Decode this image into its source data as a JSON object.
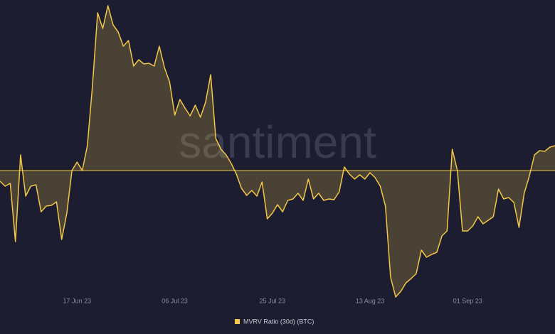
{
  "chart_data": {
    "type": "area-line",
    "watermark": "santiment",
    "series": [
      {
        "name": "MVRV Ratio (30d) (BTC)",
        "color": "#f3c747",
        "values": [
          -0.75,
          -1.1,
          -0.9,
          -5,
          1.1,
          -1.8,
          -1.1,
          -1,
          -2.9,
          -2.5,
          -2.45,
          -2.2,
          -4.85,
          -3,
          0,
          0.6,
          0,
          1.75,
          6,
          11.1,
          10,
          11.6,
          10.25,
          9.75,
          8.75,
          9.15,
          7.35,
          7.8,
          7.5,
          7.55,
          7.35,
          8.75,
          7.25,
          6.25,
          3.9,
          5,
          4.4,
          3.85,
          4.6,
          3.75,
          4.8,
          6.75,
          2.25,
          1.5,
          1.1,
          0.5,
          -0.25,
          -1.25,
          -1.75,
          -1.4,
          -1.8,
          -0.8,
          -3.4,
          -3,
          -2.4,
          -2.9,
          -2.1,
          -2,
          -1.6,
          -2.1,
          -0.6,
          -2,
          -1.6,
          -2.1,
          -2,
          -2.05,
          -1.5,
          0.25,
          -0.25,
          -0.6,
          -0.3,
          -0.6,
          -0.15,
          -0.5,
          -1.1,
          -2.5,
          -7.5,
          -8.9,
          -8.5,
          -7.9,
          -7.6,
          -7.25,
          -5.6,
          -6.1,
          -5.9,
          -5.75,
          -4.6,
          -4.25,
          1.5,
          0,
          -4.25,
          -4.25,
          -3.9,
          -3.25,
          -3.75,
          -3.5,
          -3.25,
          -1.3,
          -2,
          -1.9,
          -2.25,
          -4,
          -1.6,
          -0.4,
          1.1,
          1.4,
          1.35,
          1.65,
          1.75
        ]
      }
    ],
    "x": [
      "2023-06-02",
      "2023-06-03",
      "2023-06-04",
      "2023-06-05",
      "2023-06-06",
      "2023-06-07",
      "2023-06-08",
      "2023-06-09",
      "2023-06-10",
      "2023-06-11",
      "2023-06-12",
      "2023-06-13",
      "2023-06-14",
      "2023-06-15",
      "2023-06-16",
      "2023-06-17",
      "2023-06-18",
      "2023-06-19",
      "2023-06-20",
      "2023-06-21",
      "2023-06-22",
      "2023-06-23",
      "2023-06-24",
      "2023-06-25",
      "2023-06-26",
      "2023-06-27",
      "2023-06-28",
      "2023-06-29",
      "2023-06-30",
      "2023-07-01",
      "2023-07-02",
      "2023-07-03",
      "2023-07-04",
      "2023-07-05",
      "2023-07-06",
      "2023-07-07",
      "2023-07-08",
      "2023-07-09",
      "2023-07-10",
      "2023-07-11",
      "2023-07-12",
      "2023-07-13",
      "2023-07-14",
      "2023-07-15",
      "2023-07-16",
      "2023-07-17",
      "2023-07-18",
      "2023-07-19",
      "2023-07-20",
      "2023-07-21",
      "2023-07-22",
      "2023-07-23",
      "2023-07-24",
      "2023-07-25",
      "2023-07-26",
      "2023-07-27",
      "2023-07-28",
      "2023-07-29",
      "2023-07-30",
      "2023-07-31",
      "2023-08-01",
      "2023-08-02",
      "2023-08-03",
      "2023-08-04",
      "2023-08-05",
      "2023-08-06",
      "2023-08-07",
      "2023-08-08",
      "2023-08-09",
      "2023-08-10",
      "2023-08-11",
      "2023-08-12",
      "2023-08-13",
      "2023-08-14",
      "2023-08-15",
      "2023-08-16",
      "2023-08-17",
      "2023-08-18",
      "2023-08-19",
      "2023-08-20",
      "2023-08-21",
      "2023-08-22",
      "2023-08-23",
      "2023-08-24",
      "2023-08-25",
      "2023-08-26",
      "2023-08-27",
      "2023-08-28",
      "2023-08-29",
      "2023-08-30",
      "2023-08-31",
      "2023-09-01",
      "2023-09-02",
      "2023-09-03",
      "2023-09-04",
      "2023-09-05",
      "2023-09-06",
      "2023-09-07",
      "2023-09-08",
      "2023-09-09",
      "2023-09-10",
      "2023-09-11",
      "2023-09-12",
      "2023-09-13",
      "2023-09-14",
      "2023-09-15",
      "2023-09-16",
      "2023-09-17",
      "2023-09-18"
    ],
    "xlim": [
      "2023-06-02",
      "2023-09-18"
    ],
    "xticks": [
      {
        "value": "2023-06-17",
        "label": "17 Jun 23"
      },
      {
        "value": "2023-07-06",
        "label": "06 Jul 23"
      },
      {
        "value": "2023-07-25",
        "label": "25 Jul 23"
      },
      {
        "value": "2023-08-13",
        "label": "13 Aug 23"
      },
      {
        "value": "2023-09-01",
        "label": "01 Sep 23"
      }
    ],
    "ylim": [
      -9.5,
      12
    ],
    "baseline": 0,
    "legend": "bottom"
  }
}
